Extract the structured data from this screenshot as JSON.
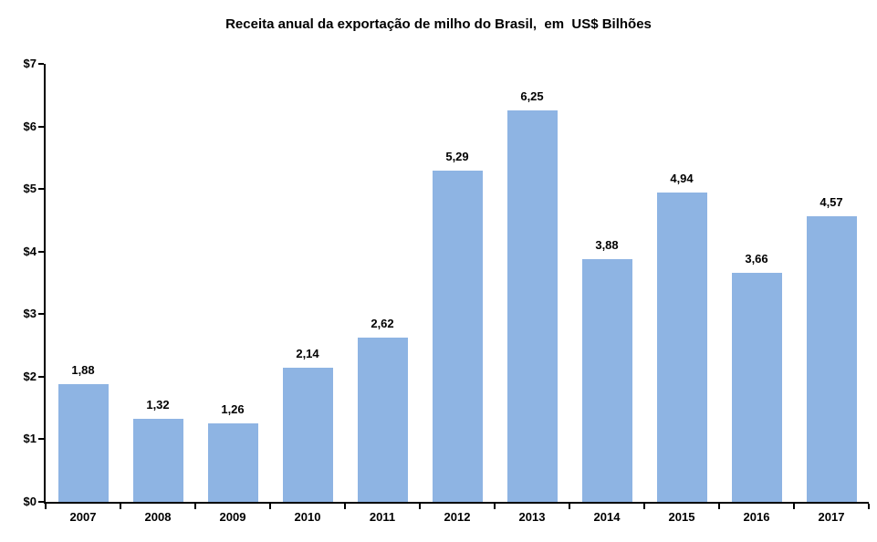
{
  "chart_data": {
    "type": "bar",
    "title": "Receita anual da exportação de milho do Brasil,  em  US$ Bilhões",
    "categories": [
      "2007",
      "2008",
      "2009",
      "2010",
      "2011",
      "2012",
      "2013",
      "2014",
      "2015",
      "2016",
      "2017"
    ],
    "values": [
      1.88,
      1.32,
      1.26,
      2.14,
      2.62,
      5.29,
      6.25,
      3.88,
      4.94,
      3.66,
      4.57
    ],
    "value_labels": [
      "1,88",
      "1,32",
      "1,26",
      "2,14",
      "2,62",
      "5,29",
      "6,25",
      "3,88",
      "4,94",
      "3,66",
      "4,57"
    ],
    "xlabel": "",
    "ylabel": "",
    "y_ticks": [
      "$0",
      "$1",
      "$2",
      "$3",
      "$4",
      "$5",
      "$6",
      "$7"
    ],
    "ylim": [
      0,
      7
    ],
    "grid": false,
    "legend": false,
    "bar_color": "#8EB4E3",
    "axis_color": "#000000",
    "text_color": "#000000",
    "background": "#FFFFFF"
  }
}
